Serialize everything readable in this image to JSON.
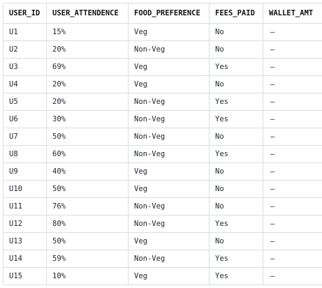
{
  "table": {
    "headers": [
      "USER_ID",
      "USER_ATTENDENCE",
      "FOOD_PREFERENCE",
      "FEES_PAID",
      "WALLET_AMT"
    ],
    "rows": [
      [
        "U1",
        "15%",
        "Veg",
        "No",
        "–"
      ],
      [
        "U2",
        "20%",
        "Non-Veg",
        "No",
        "–"
      ],
      [
        "U3",
        "69%",
        "Veg",
        "Yes",
        "–"
      ],
      [
        "U4",
        "20%",
        "Veg",
        "No",
        "–"
      ],
      [
        "U5",
        "20%",
        "Non-Veg",
        "Yes",
        "–"
      ],
      [
        "U6",
        "30%",
        "Non-Veg",
        "Yes",
        "–"
      ],
      [
        "U7",
        "50%",
        "Non-Veg",
        "No",
        "–"
      ],
      [
        "U8",
        "60%",
        "Non-Veg",
        "Yes",
        "–"
      ],
      [
        "U9",
        "40%",
        "Veg",
        "No",
        "–"
      ],
      [
        "U10",
        "50%",
        "Veg",
        "No",
        "–"
      ],
      [
        "U11",
        "76%",
        "Non-Veg",
        "No",
        "–"
      ],
      [
        "U12",
        "80%",
        "Non-Veg",
        "Yes",
        "–"
      ],
      [
        "U13",
        "50%",
        "Veg",
        "No",
        "–"
      ],
      [
        "U14",
        "59%",
        "Non-Veg",
        "Yes",
        "–"
      ],
      [
        "U15",
        "10%",
        "Veg",
        "Yes",
        "–"
      ]
    ]
  },
  "colors": {
    "border": "#d9dde3",
    "text": "#1f2328",
    "background": "#ffffff"
  }
}
